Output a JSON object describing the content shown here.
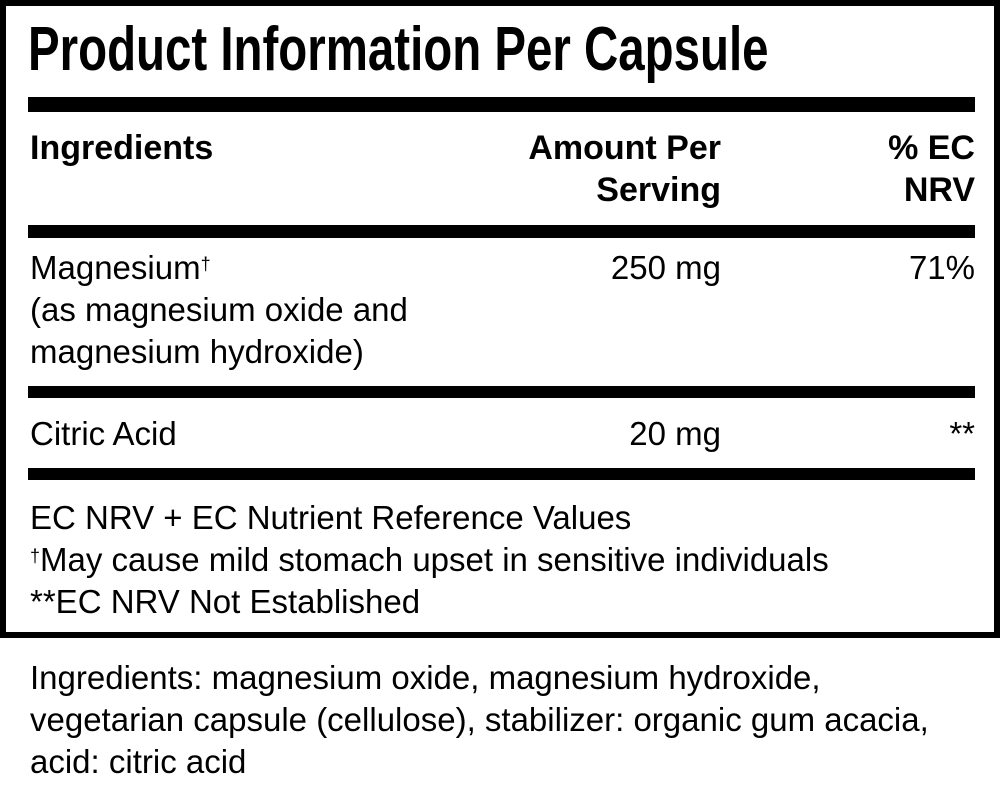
{
  "title": "Product Information Per Capsule",
  "headers": {
    "ingredients": "Ingredients",
    "amount_line1": "Amount Per",
    "amount_line2": "Serving",
    "nrv_line1": "% EC",
    "nrv_line2": "NRV"
  },
  "rows": [
    {
      "name": "Magnesium",
      "mark": "†",
      "detail_line1": "(as magnesium oxide and",
      "detail_line2": "magnesium hydroxide)",
      "amount": "250 mg",
      "nrv": "71%"
    },
    {
      "name": "Citric Acid",
      "amount": "20 mg",
      "nrv": "**"
    }
  ],
  "footnotes": {
    "line1": "EC NRV + EC Nutrient Reference Values",
    "line2_mark": "†",
    "line2": "May cause mild stomach upset in sensitive individuals",
    "line3": "**EC NRV Not Established"
  },
  "ingredients_list": {
    "line1": "Ingredients: magnesium oxide, magnesium hydroxide,",
    "line2": "vegetarian capsule (cellulose), stabilizer: organic gum acacia,",
    "line3": "acid: citric acid"
  }
}
